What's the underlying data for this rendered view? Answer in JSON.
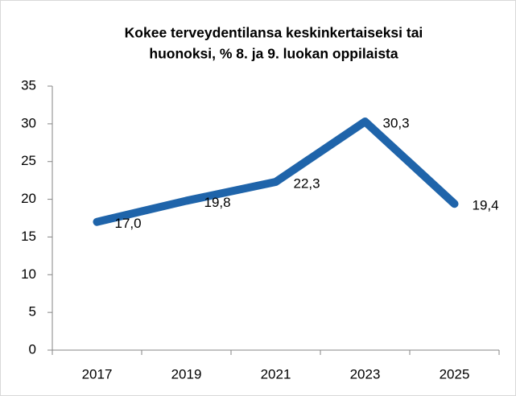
{
  "chart_data": {
    "type": "line",
    "title": [
      "Kokee terveydentilansa keskinkertaiseksi tai",
      "huonoksi, % 8. ja 9. luokan oppilaista"
    ],
    "categories": [
      "2017",
      "2019",
      "2021",
      "2023",
      "2025"
    ],
    "series": [
      {
        "color": "#1f64aa",
        "values": [
          17.0,
          19.8,
          22.3,
          30.3,
          19.4
        ],
        "value_labels": [
          "17,0",
          "19,8",
          "22,3",
          "30,3",
          "19,4"
        ]
      }
    ],
    "ylim": [
      0,
      35
    ],
    "yticks": [
      0,
      5,
      10,
      15,
      20,
      25,
      30,
      35
    ],
    "grid": false
  }
}
